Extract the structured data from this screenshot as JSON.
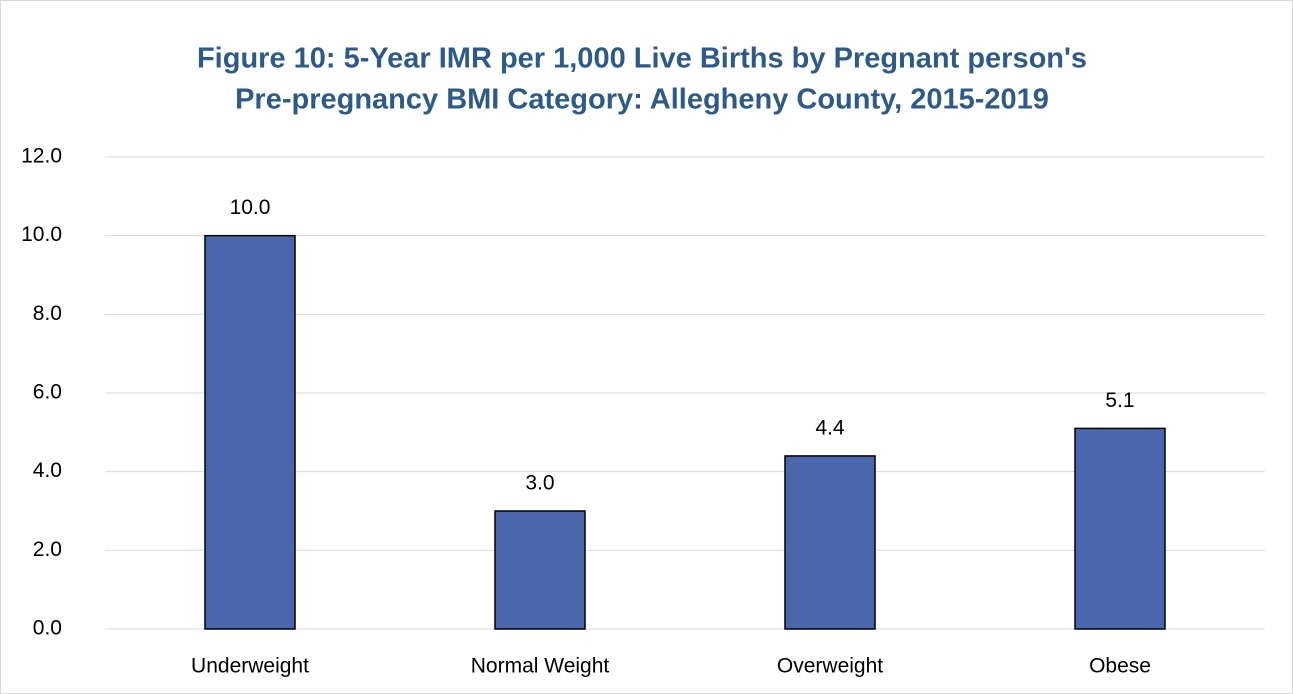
{
  "chart_data": {
    "type": "bar",
    "title": [
      "Figure 10: 5-Year IMR per 1,000 Live Births by Pregnant person's",
      "Pre-pregnancy BMI Category: Allegheny County, 2015-2019"
    ],
    "categories": [
      "Underweight",
      "Normal Weight",
      "Overweight",
      "Obese"
    ],
    "values": [
      10.0,
      3.0,
      4.4,
      5.1
    ],
    "value_labels": [
      "10.0",
      "3.0",
      "4.4",
      "5.1"
    ],
    "color": "#4a66ac",
    "ylim": [
      0,
      12
    ],
    "yticks": [
      {
        "value": 0,
        "label": "0.0"
      },
      {
        "value": 2,
        "label": "2.0"
      },
      {
        "value": 4,
        "label": "4.0"
      },
      {
        "value": 6,
        "label": "6.0"
      },
      {
        "value": 8,
        "label": "8.0"
      },
      {
        "value": 10,
        "label": "10.0"
      },
      {
        "value": 12,
        "label": "12.0"
      }
    ],
    "grid": true
  }
}
